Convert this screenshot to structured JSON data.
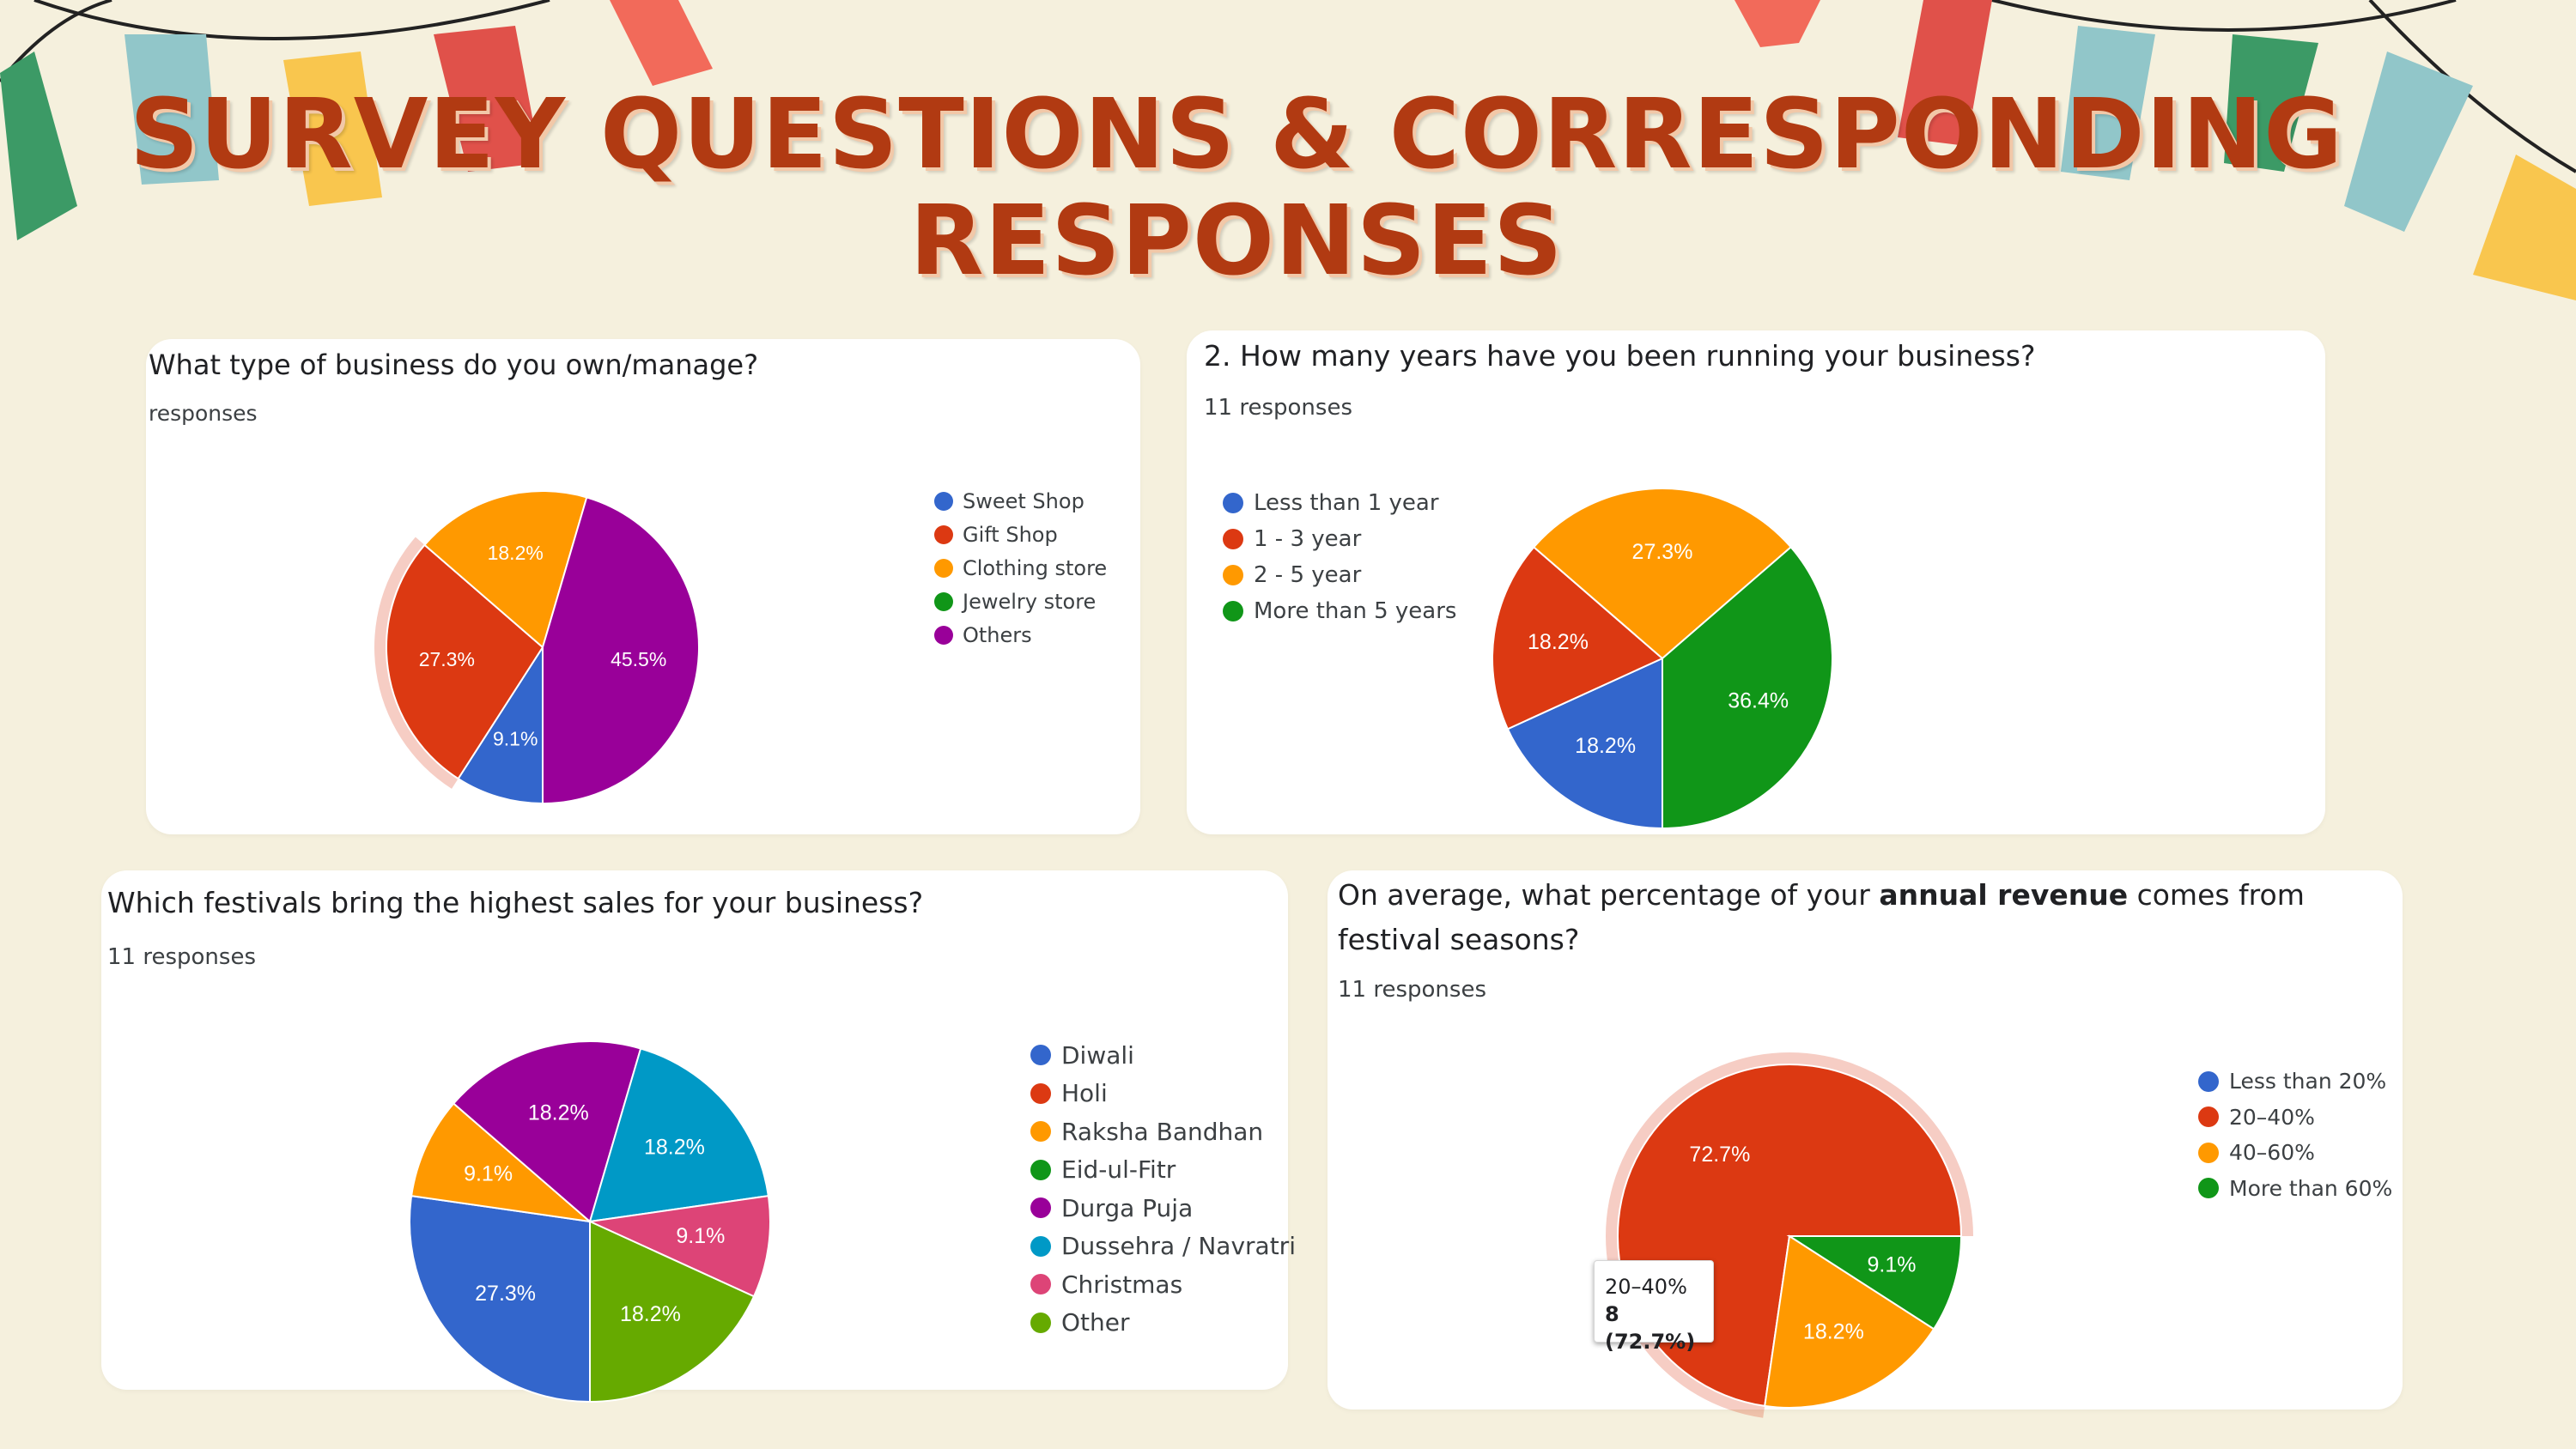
{
  "page": {
    "title_line1": "SURVEY QUESTIONS & CORRESPONDING",
    "title_line2": "RESPONSES"
  },
  "chart_data": [
    {
      "type": "pie",
      "question": "What type of business do you own/manage?",
      "responses_label": "responses",
      "categories": [
        "Sweet Shop",
        "Gift Shop",
        "Clothing store",
        "Jewelry store",
        "Others"
      ],
      "values": [
        9.1,
        27.3,
        18.2,
        0,
        45.5
      ],
      "labels": [
        "9.1%",
        "27.3%",
        "18.2%",
        "",
        "45.5%"
      ],
      "colors": [
        "#3366cc",
        "#dc3912",
        "#ff9900",
        "#109618",
        "#990099"
      ],
      "highlighted": "Gift Shop"
    },
    {
      "type": "pie",
      "question": "2. How many years have you been running your business?",
      "responses_label": "11 responses",
      "categories": [
        "Less than 1 year",
        "1 - 3 year",
        "2 - 5 year",
        "More than 5 years"
      ],
      "values": [
        18.2,
        18.2,
        27.3,
        36.4
      ],
      "labels": [
        "18.2%",
        "18.2%",
        "27.3%",
        "36.4%"
      ],
      "colors": [
        "#3366cc",
        "#dc3912",
        "#ff9900",
        "#109618"
      ]
    },
    {
      "type": "pie",
      "question": "Which festivals bring the highest sales for your business?",
      "responses_label": "11 responses",
      "categories": [
        "Diwali",
        "Holi",
        "Raksha Bandhan",
        "Eid-ul-Fitr",
        "Durga Puja",
        "Dussehra / Navratri",
        "Christmas",
        "Other"
      ],
      "values": [
        27.3,
        0,
        9.1,
        0,
        18.2,
        18.2,
        9.1,
        18.2
      ],
      "labels": [
        "27.3%",
        "",
        "9.1%",
        "",
        "18.2%",
        "18.2%",
        "9.1%",
        "18.2%"
      ],
      "colors": [
        "#3366cc",
        "#dc3912",
        "#ff9900",
        "#109618",
        "#990099",
        "#0099c6",
        "#dd4477",
        "#66aa00"
      ]
    },
    {
      "type": "pie",
      "question_prefix": "On average, what percentage of your ",
      "question_bold": "annual revenue",
      "question_suffix": " comes from festival seasons?",
      "responses_label": "11 responses",
      "categories": [
        "Less than 20%",
        "20–40%",
        "40–60%",
        "More than 60%"
      ],
      "values": [
        0,
        72.7,
        18.2,
        9.1
      ],
      "labels": [
        "",
        "72.7%",
        "18.2%",
        "9.1%"
      ],
      "colors": [
        "#3366cc",
        "#dc3912",
        "#ff9900",
        "#109618"
      ],
      "highlighted": "20–40%",
      "tooltip": {
        "category": "20–40%",
        "value": "8 (72.7%)"
      }
    }
  ]
}
